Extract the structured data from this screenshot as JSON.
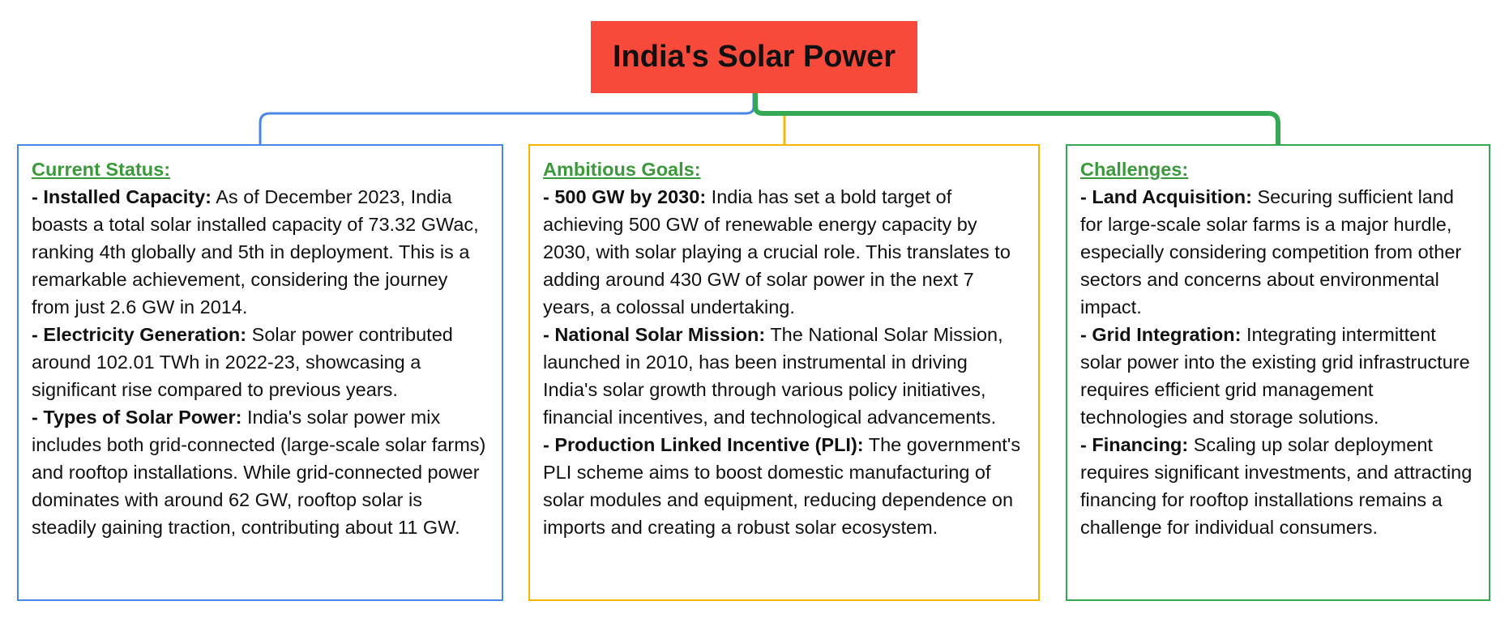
{
  "title": "India's Solar Power",
  "sections": [
    {
      "heading": "Current Status:",
      "items": [
        {
          "label": "- Installed Capacity:",
          "text": "As of December 2023, India boasts a total solar installed capacity of 73.32 GWac, ranking 4th globally and 5th in deployment. This is a remarkable achievement, considering the journey from just 2.6 GW in 2014."
        },
        {
          "label": "- Electricity Generation:",
          "text": "Solar power contributed around 102.01 TWh in 2022-23, showcasing a significant rise compared to previous years."
        },
        {
          "label": "- Types of Solar Power:",
          "text": "India's solar power mix includes both grid-connected (large-scale solar farms) and rooftop installations. While grid-connected power dominates with around 62 GW, rooftop solar is steadily gaining traction, contributing about 11 GW."
        }
      ]
    },
    {
      "heading": "Ambitious Goals:",
      "items": [
        {
          "label": "- 500 GW by 2030:",
          "text": "India has set a bold target of achieving 500 GW of renewable energy capacity by 2030, with solar playing a crucial role. This translates to adding around 430 GW of solar power in the next 7 years, a colossal undertaking."
        },
        {
          "label": "- National Solar Mission:",
          "text": "The National Solar Mission, launched in 2010, has been instrumental in driving India's solar growth through various policy initiatives, financial incentives, and technological advancements."
        },
        {
          "label": "- Production Linked Incentive (PLI):",
          "text": "The government's PLI scheme aims to boost domestic manufacturing of solar modules and equipment, reducing dependence on imports and creating a robust solar ecosystem."
        }
      ]
    },
    {
      "heading": "Challenges:",
      "items": [
        {
          "label": "- Land Acquisition:",
          "text": "Securing sufficient land for large-scale solar farms is a major hurdle, especially considering competition from other sectors and concerns about environmental impact."
        },
        {
          "label": "- Grid Integration:",
          "text": "Integrating intermittent solar power into the existing grid infrastructure requires efficient grid management technologies and storage solutions."
        },
        {
          "label": "- Financing:",
          "text": "Scaling up solar deployment requires significant investments, and attracting financing for rooftop installations remains a challenge for individual consumers."
        }
      ]
    }
  ]
}
